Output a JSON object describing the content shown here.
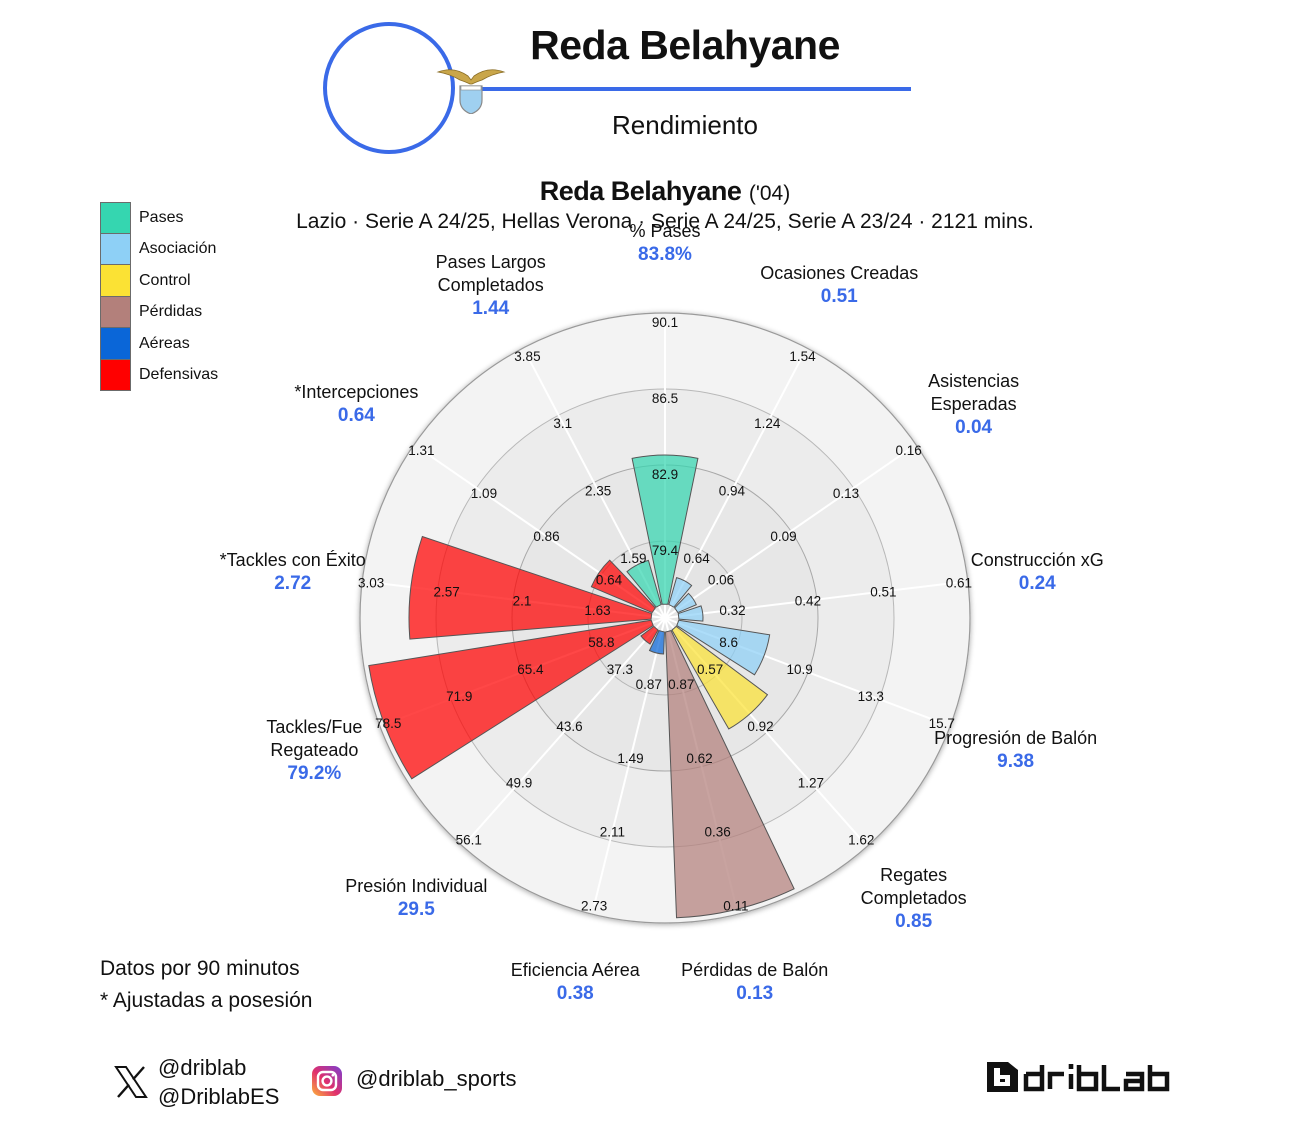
{
  "header": {
    "player_name": "Reda Belahyane",
    "subtitle": "Rendimiento",
    "club_crest": "lazio-crest"
  },
  "chart_header": {
    "player_name": "Reda Belahyane",
    "birth_year": "('04)",
    "details": "Lazio · Serie A 24/25, Hellas Verona · Serie A 24/25, Serie A 23/24 · 2121 mins."
  },
  "legend": [
    {
      "label": "Pases",
      "color": "#35d6b0"
    },
    {
      "label": "Asociación",
      "color": "#8ed0f6"
    },
    {
      "label": "Control",
      "color": "#fbe234"
    },
    {
      "label": "Pérdidas",
      "color": "#b3807b"
    },
    {
      "label": "Aéreas",
      "color": "#0a66d8"
    },
    {
      "label": "Defensivas",
      "color": "#ff0000"
    }
  ],
  "notes": {
    "line1": "Datos por 90 minutos",
    "line2": "* Ajustadas a posesión"
  },
  "social": {
    "x_handle_1": "@driblab",
    "x_handle_2": "@DriblabES",
    "instagram_handle": "@driblab_sports",
    "brand": "driblab"
  },
  "chart_data": {
    "type": "polar-bar",
    "title": "Reda Belahyane ('04) — Rendimiento",
    "grid": true,
    "ring_count": 4,
    "categories": [
      {
        "label": "% Pases",
        "value_label": "83.8%",
        "value": 83.8,
        "group": "Pases",
        "ticks": [
          "79.4",
          "82.9",
          "86.5",
          "90.1"
        ],
        "bar_r": 163
      },
      {
        "label": "Ocasiones Creadas",
        "value_label": "0.51",
        "value": 0.51,
        "group": "Asociación",
        "ticks": [
          "0.64",
          "0.94",
          "1.24",
          "1.54"
        ],
        "bar_r": 42
      },
      {
        "label": "Asistencias Esperadas",
        "value_label": "0.04",
        "value": 0.04,
        "group": "Asociación",
        "ticks": [
          "0.06",
          "0.09",
          "0.13",
          "0.16"
        ],
        "bar_r": 34
      },
      {
        "label": "Construcción xG",
        "value_label": "0.24",
        "value": 0.24,
        "group": "Asociación",
        "ticks": [
          "0.32",
          "0.42",
          "0.51",
          "0.61"
        ],
        "bar_r": 38
      },
      {
        "label": "Progresión de Balón",
        "value_label": "9.38",
        "value": 9.38,
        "group": "Asociación",
        "ticks": [
          "8.6",
          "10.9",
          "13.3",
          "15.7"
        ],
        "bar_r": 106
      },
      {
        "label": "Regates Completados",
        "value_label": "0.85",
        "value": 0.85,
        "group": "Control",
        "ticks": [
          "0.57",
          "0.92",
          "1.27",
          "1.62"
        ],
        "bar_r": 128
      },
      {
        "label": "Pérdidas de Balón",
        "value_label": "0.13",
        "value": 0.13,
        "group": "Pérdidas",
        "ticks": [
          "0.87",
          "0.62",
          "0.36",
          "0.11"
        ],
        "bar_r": 300
      },
      {
        "label": "Eficiencia Aérea",
        "value_label": "0.38",
        "value": 0.38,
        "group": "Aéreas",
        "ticks": [
          "0.87",
          "1.49",
          "2.11",
          "2.73"
        ],
        "bar_r": 36
      },
      {
        "label": "Presión Individual",
        "value_label": "29.5",
        "value": 29.5,
        "group": "Defensivas",
        "ticks": [
          "37.3",
          "43.6",
          "49.9",
          "56.1"
        ],
        "bar_r": 30
      },
      {
        "label": "Tackles/Fue Regateado",
        "value_label": "79.2%",
        "value": 79.2,
        "group": "Defensivas",
        "ticks": [
          "58.8",
          "65.4",
          "71.9",
          "78.5"
        ],
        "bar_r": 300
      },
      {
        "label": "*Tackles con Éxito",
        "value_label": "2.72",
        "value": 2.72,
        "group": "Defensivas",
        "ticks": [
          "1.63",
          "2.1",
          "2.57",
          "3.03"
        ],
        "bar_r": 256
      },
      {
        "label": "*Intercepciones",
        "value_label": "0.64",
        "value": 0.64,
        "group": "Defensivas",
        "ticks": [
          "0.64",
          "0.86",
          "1.09",
          "1.31"
        ],
        "bar_r": 80
      },
      {
        "label": "Pases Largos Completados",
        "value_label": "1.44",
        "value": 1.44,
        "group": "Pases",
        "ticks": [
          "1.59",
          "2.35",
          "3.1",
          "3.85"
        ],
        "bar_r": 60
      }
    ]
  }
}
